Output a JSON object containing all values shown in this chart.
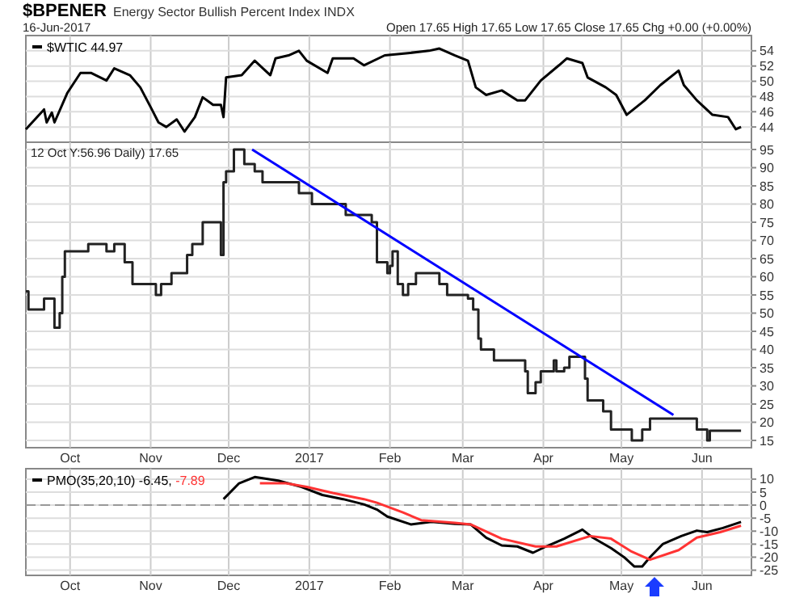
{
  "chart_data": [
    {
      "type": "line",
      "title": "$BPENER",
      "subtitle": "Energy Sector Bullish Percent Index INDX",
      "annotations": [
        "16-Jun-2017",
        "Open 17.65 High 17.65 Low 17.65 Close 17.65 Chg +0.00 (+0.00%)"
      ],
      "series": [
        {
          "name": "$WTIC 44.97",
          "color": "#000000",
          "x": [
            "2016-09-14",
            "2016-09-21",
            "2016-09-22",
            "2016-09-24",
            "2016-09-25",
            "2016-09-30",
            "2016-10-05",
            "2016-10-09",
            "2016-10-15",
            "2016-10-18",
            "2016-10-24",
            "2016-10-28",
            "2016-11-01",
            "2016-11-04",
            "2016-11-07",
            "2016-11-11",
            "2016-11-14",
            "2016-11-18",
            "2016-11-21",
            "2016-11-25",
            "2016-11-28",
            "2016-11-29",
            "2016-11-30",
            "2016-12-06",
            "2016-12-11",
            "2016-12-17",
            "2016-12-19",
            "2016-12-24",
            "2016-12-28",
            "2016-12-31",
            "2017-01-08",
            "2017-01-10",
            "2017-01-18",
            "2017-01-22",
            "2017-01-30",
            "2017-02-08",
            "2017-02-16",
            "2017-02-20",
            "2017-02-26",
            "2017-03-03",
            "2017-03-06",
            "2017-03-10",
            "2017-03-16",
            "2017-03-22",
            "2017-03-25",
            "2017-03-31",
            "2017-04-07",
            "2017-04-10",
            "2017-04-16",
            "2017-04-18",
            "2017-04-25",
            "2017-04-29",
            "2017-05-03",
            "2017-05-10",
            "2017-05-16",
            "2017-05-23",
            "2017-05-25",
            "2017-05-30",
            "2017-06-05",
            "2017-06-11",
            "2017-06-14",
            "2017-06-16"
          ],
          "values": [
            43.7,
            46.3,
            44.6,
            45.9,
            44.6,
            48.5,
            51.1,
            51.1,
            50.1,
            51.7,
            50.8,
            49.2,
            46.6,
            44.6,
            44,
            45,
            43.4,
            45.3,
            47.9,
            46.9,
            46.9,
            45.3,
            50.5,
            50.8,
            52.7,
            50.8,
            53,
            53.4,
            54,
            52.7,
            51.1,
            53,
            53,
            52.1,
            53.4,
            53.7,
            54,
            54.3,
            53.4,
            52.7,
            49.2,
            48.2,
            48.8,
            47.5,
            47.5,
            50.1,
            52.1,
            53,
            52.4,
            50.5,
            49.2,
            48.2,
            45.6,
            47.5,
            49.5,
            51.4,
            49.5,
            47.5,
            45.6,
            45.3,
            43.7,
            44
          ]
        }
      ],
      "xlim": [
        "2016-09-14",
        "2017-06-20"
      ],
      "xticks": [
        {
          "value": "2016-10-01",
          "label": null
        },
        {
          "value": "2016-11-01",
          "label": null
        },
        {
          "value": "2016-12-01",
          "label": null
        },
        {
          "value": "2017-01-01",
          "label": null
        },
        {
          "value": "2017-02-01",
          "label": null
        },
        {
          "value": "2017-03-01",
          "label": null
        },
        {
          "value": "2017-04-01",
          "label": null
        },
        {
          "value": "2017-05-01",
          "label": null
        },
        {
          "value": "2017-06-01",
          "label": null
        }
      ],
      "ylim": [
        42,
        56
      ],
      "yticks": [
        44,
        46,
        48,
        50,
        52,
        54
      ],
      "tick_labels": "y",
      "grid": true,
      "legend": "top left"
    },
    {
      "type": "step",
      "annotations": [
        "12 Oct Y:56.96 Daily) 17.65"
      ],
      "series": [
        {
          "color": "#222222",
          "x": [
            "2016-09-14",
            "2016-09-15",
            "2016-09-21",
            "2016-09-25",
            "2016-09-27",
            "2016-09-28",
            "2016-09-29",
            "2016-10-08",
            "2016-10-15",
            "2016-10-18",
            "2016-10-22",
            "2016-10-25",
            "2016-11-03",
            "2016-11-05",
            "2016-11-09",
            "2016-11-15",
            "2016-11-17",
            "2016-11-21",
            "2016-11-28",
            "2016-11-29",
            "2016-11-30",
            "2016-12-03",
            "2016-12-07",
            "2016-12-11",
            "2016-12-14",
            "2016-12-28",
            "2017-01-02",
            "2017-01-15",
            "2017-01-25",
            "2017-01-27",
            "2017-01-31",
            "2017-02-01",
            "2017-02-02",
            "2017-02-04",
            "2017-02-06",
            "2017-02-08",
            "2017-02-11",
            "2017-02-20",
            "2017-02-23",
            "2017-03-03",
            "2017-03-05",
            "2017-03-07",
            "2017-03-08",
            "2017-03-13",
            "2017-03-25",
            "2017-03-26",
            "2017-03-29",
            "2017-03-31",
            "2017-04-05",
            "2017-04-06",
            "2017-04-09",
            "2017-04-11",
            "2017-04-17",
            "2017-04-18",
            "2017-04-24",
            "2017-04-27",
            "2017-05-05",
            "2017-05-09",
            "2017-05-12",
            "2017-05-17",
            "2017-05-30",
            "2017-06-03",
            "2017-06-04",
            "2017-06-16"
          ],
          "values": [
            56,
            51,
            54,
            46,
            50,
            60,
            67,
            69,
            67,
            69,
            64,
            58,
            55,
            58,
            61,
            66,
            69,
            75,
            66,
            86,
            89,
            95,
            91,
            89,
            86,
            83,
            80,
            77,
            75,
            64,
            61,
            63,
            67,
            58,
            55,
            58,
            61,
            58,
            55,
            54,
            51,
            43,
            40,
            37,
            34,
            28,
            31,
            34,
            37,
            34,
            35,
            38,
            32,
            26,
            23,
            18,
            15,
            18,
            21,
            21,
            18,
            15,
            17.65,
            17.65
          ]
        },
        {
          "type": "line",
          "color": "#0000ff",
          "x": [
            "2016-12-10",
            "2017-05-21"
          ],
          "values": [
            95,
            22
          ]
        }
      ],
      "xlim": [
        "2016-09-14",
        "2017-06-20"
      ],
      "xticks": [
        {
          "value": "2016-10-01",
          "label": "Oct"
        },
        {
          "value": "2016-11-01",
          "label": "Nov"
        },
        {
          "value": "2016-12-01",
          "label": "Dec"
        },
        {
          "value": "2017-01-01",
          "label": "2017"
        },
        {
          "value": "2017-02-01",
          "label": "Feb"
        },
        {
          "value": "2017-03-01",
          "label": "Mar"
        },
        {
          "value": "2017-04-01",
          "label": "Apr"
        },
        {
          "value": "2017-05-01",
          "label": "May"
        },
        {
          "value": "2017-06-01",
          "label": "Jun"
        }
      ],
      "ylim": [
        13,
        97
      ],
      "yticks": [
        15,
        20,
        25,
        30,
        35,
        40,
        45,
        50,
        55,
        60,
        65,
        70,
        75,
        80,
        85,
        90,
        95
      ],
      "grid": true
    },
    {
      "type": "line",
      "series": [
        {
          "name": "PMO(35,20,10) -6.45,",
          "color": "#000000",
          "x": [
            "2016-11-29",
            "2016-12-05",
            "2016-12-11",
            "2016-12-20",
            "2016-12-29",
            "2017-01-06",
            "2017-01-14",
            "2017-01-22",
            "2017-01-27",
            "2017-01-31",
            "2017-02-09",
            "2017-02-17",
            "2017-02-26",
            "2017-03-04",
            "2017-03-10",
            "2017-03-16",
            "2017-03-22",
            "2017-03-28",
            "2017-04-02",
            "2017-04-09",
            "2017-04-16",
            "2017-04-20",
            "2017-04-27",
            "2017-05-02",
            "2017-05-06",
            "2017-05-09",
            "2017-05-12",
            "2017-05-17",
            "2017-05-24",
            "2017-05-30",
            "2017-06-03",
            "2017-06-09",
            "2017-06-16"
          ],
          "values": [
            2.3,
            8.4,
            10.8,
            9.4,
            7,
            3.9,
            2.3,
            0.3,
            -1.7,
            -4.4,
            -7.4,
            -6.4,
            -7.2,
            -7.4,
            -12.5,
            -15.5,
            -15.9,
            -18.3,
            -15.9,
            -12.9,
            -9.4,
            -12.5,
            -16.5,
            -20,
            -23.6,
            -23.6,
            -20,
            -14.9,
            -11.9,
            -9.8,
            -10.4,
            -8.8,
            -6.45
          ]
        },
        {
          "name": "-7.89",
          "color": "#ff3333",
          "x": [
            "2016-12-13",
            "2016-12-23",
            "2016-12-31",
            "2017-01-10",
            "2017-01-22",
            "2017-01-27",
            "2017-02-06",
            "2017-02-13",
            "2017-02-26",
            "2017-03-04",
            "2017-03-16",
            "2017-03-29",
            "2017-04-06",
            "2017-04-19",
            "2017-04-27",
            "2017-05-05",
            "2017-05-12",
            "2017-05-23",
            "2017-05-30",
            "2017-06-08",
            "2017-06-16"
          ],
          "values": [
            8.4,
            8.4,
            7,
            4.7,
            2.3,
            0.9,
            -2.8,
            -5.8,
            -6.8,
            -7.4,
            -12.9,
            -15.9,
            -15.9,
            -11.9,
            -12.9,
            -17.9,
            -21,
            -17.3,
            -12.5,
            -10.4,
            -7.89
          ]
        }
      ],
      "ref_lines": [
        {
          "axis": "y",
          "value": 0,
          "color": "#999999",
          "line_style": "dashed"
        }
      ],
      "xlim": [
        "2016-09-14",
        "2017-06-20"
      ],
      "xticks": [
        {
          "value": "2016-10-01",
          "label": "Oct"
        },
        {
          "value": "2016-11-01",
          "label": "Nov"
        },
        {
          "value": "2016-12-01",
          "label": "Dec"
        },
        {
          "value": "2017-01-01",
          "label": "2017"
        },
        {
          "value": "2017-02-01",
          "label": "Feb"
        },
        {
          "value": "2017-03-01",
          "label": "Mar"
        },
        {
          "value": "2017-04-01",
          "label": "Apr"
        },
        {
          "value": "2017-05-01",
          "label": "May"
        },
        {
          "value": "2017-06-01",
          "label": "Jun"
        }
      ],
      "ylim": [
        -27,
        14
      ],
      "yticks": [
        10,
        5,
        0,
        -5,
        -10,
        -15,
        -20,
        -25
      ],
      "grid": true,
      "legend": "top left"
    }
  ]
}
